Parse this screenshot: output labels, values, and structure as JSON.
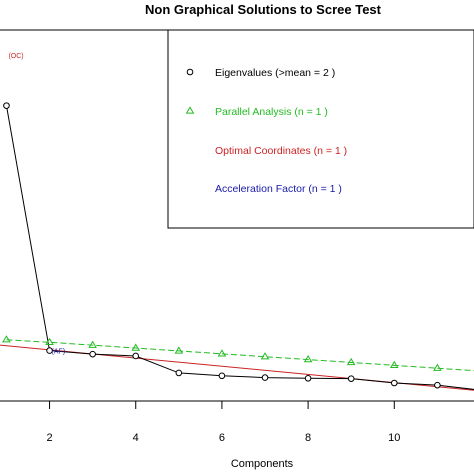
{
  "chart_data": {
    "type": "line",
    "title": "Non Graphical Solutions to Scree Test",
    "xlabel": "Components",
    "ylabel": "",
    "xlim": [
      0.85,
      11.85
    ],
    "ylim": [
      -0.3,
      10.0
    ],
    "x_ticks": [
      2,
      4,
      6,
      8,
      10
    ],
    "grid": false,
    "legend_position": "top-right",
    "series": [
      {
        "name": "Eigenvalues (>mean  =  2 )",
        "color": "#000000",
        "marker": "circle",
        "line": "solid",
        "x": [
          1,
          2,
          3,
          4,
          5,
          6,
          7,
          8,
          9,
          10,
          11,
          12
        ],
        "y": [
          7.9,
          1.1,
          1.0,
          0.95,
          0.48,
          0.4,
          0.35,
          0.33,
          0.32,
          0.2,
          0.14,
          0.0
        ]
      },
      {
        "name": "Parallel Analysis (n =  1 )",
        "color": "#22bb22",
        "marker": "triangle",
        "line": "dashed",
        "x": [
          1,
          2,
          3,
          4,
          5,
          6,
          7,
          8,
          9,
          10,
          11,
          12
        ],
        "y": [
          1.4,
          1.33,
          1.25,
          1.17,
          1.09,
          1.01,
          0.93,
          0.85,
          0.77,
          0.69,
          0.61,
          0.53
        ]
      }
    ],
    "optimal_coordinates_line": {
      "color": "#cc2222",
      "x": [
        0.85,
        11.85
      ],
      "y": [
        1.25,
        0.0
      ]
    },
    "legend": [
      {
        "label": "Eigenvalues (>mean  =  2 )",
        "color": "#000000",
        "marker": "circle"
      },
      {
        "label": "Parallel Analysis (n =  1 )",
        "color": "#22bb22",
        "marker": "triangle"
      },
      {
        "label": "Optimal Coordinates (n =  1 )",
        "color": "#cc2222",
        "marker": ""
      },
      {
        "label": "Acceleration Factor (n =  1 )",
        "color": "#1a1aaa",
        "marker": ""
      }
    ],
    "annotations": [
      {
        "text": "(OC)",
        "color": "#cc2222",
        "x": 1,
        "y": 9.3
      },
      {
        "text": "(AF)",
        "color": "#1a1aaa",
        "x": 2,
        "y": 1.1
      }
    ]
  }
}
